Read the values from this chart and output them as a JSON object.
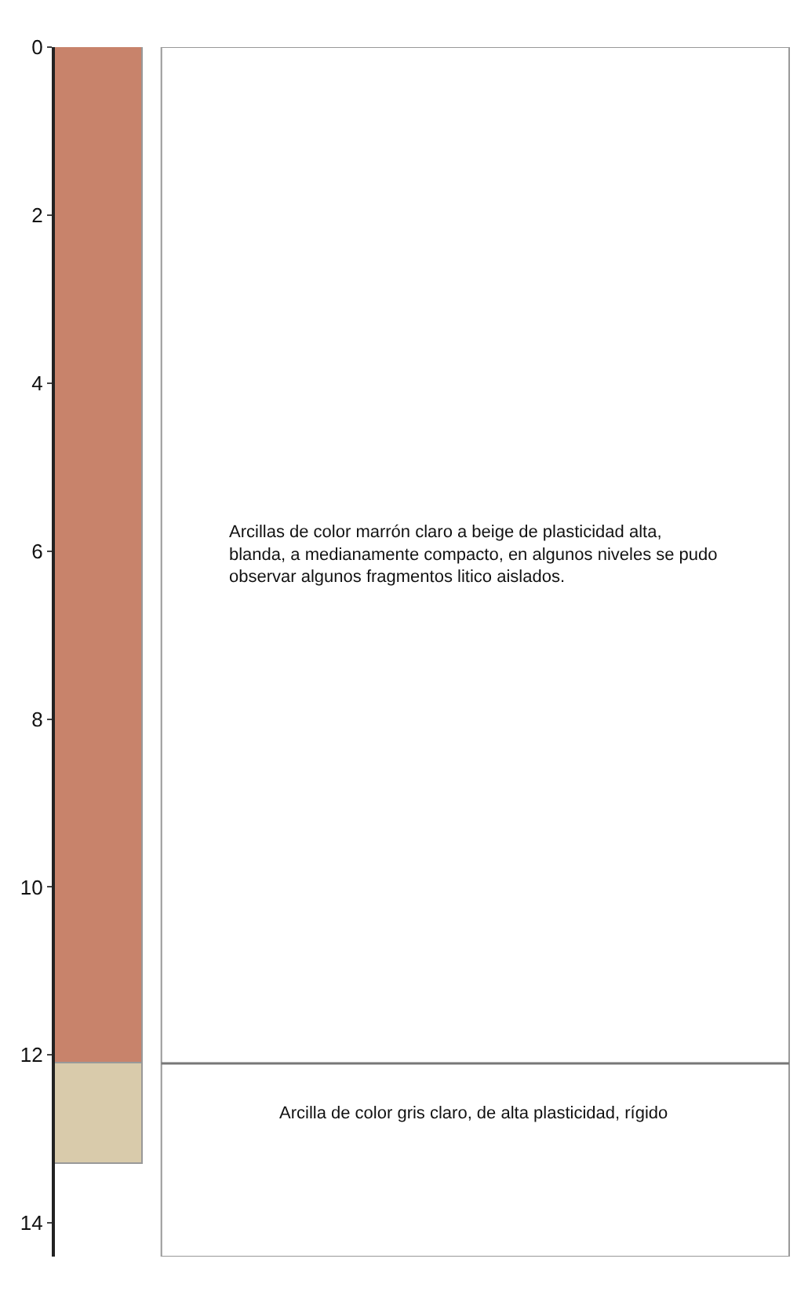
{
  "chart_data": {
    "type": "bar",
    "stacked": true,
    "categories": [
      null
    ],
    "series": [
      {
        "color": "#c8836b",
        "values": [
          12.1
        ]
      },
      {
        "color": "#d9cbab",
        "values": [
          1.2
        ]
      }
    ],
    "ylim": [
      14.4,
      0
    ],
    "yticks": [
      0,
      2,
      4,
      6,
      8,
      10,
      12,
      14
    ],
    "tick_labels": "y",
    "annotations": [
      "Arcillas de color marrón claro a beige de plasticidad alta, blanda, a medianamente compacto, en algunos niveles se pudo observar algunos fragmentos litico aislados.",
      "Arcilla de color gris claro, de alta plasticidad, rígido"
    ]
  }
}
